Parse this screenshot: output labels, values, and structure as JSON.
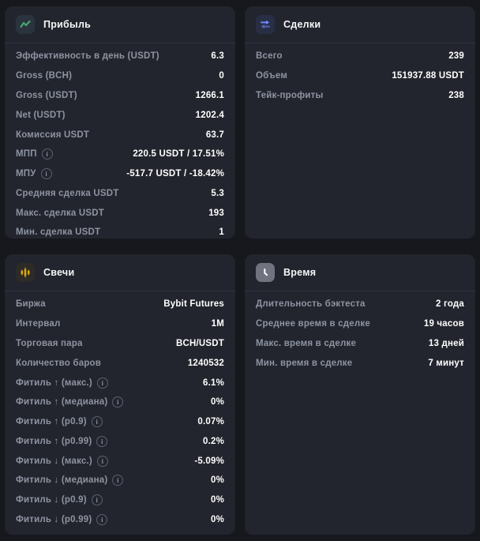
{
  "colors": {
    "page_background": "#17181e",
    "card_background": "#23252e",
    "label_text": "#8d94a1",
    "value_text": "#ffffff",
    "profit_icon_accent": "#45ab6e",
    "trades_icon_accent": "#6d87f8",
    "candles_icon_accent": "#dba70e",
    "time_icon_background": "#71737f"
  },
  "cards": [
    {
      "id": "profit",
      "title": "Прибыль",
      "icon": "chart-line-icon",
      "rows": [
        {
          "label": "Эффективность в день (USDT)",
          "value": "6.3",
          "info": false
        },
        {
          "label": "Gross (BCH)",
          "value": "0",
          "info": false
        },
        {
          "label": "Gross (USDT)",
          "value": "1266.1",
          "info": false
        },
        {
          "label": "Net (USDT)",
          "value": "1202.4",
          "info": false
        },
        {
          "label": "Комиссия USDT",
          "value": "63.7",
          "info": false
        },
        {
          "label": "МПП",
          "value": "220.5 USDT / 17.51%",
          "info": true
        },
        {
          "label": "МПУ",
          "value": "-517.7 USDT / -18.42%",
          "info": true
        },
        {
          "label": "Средняя сделка USDT",
          "value": "5.3",
          "info": false
        },
        {
          "label": "Макс. сделка USDT",
          "value": "193",
          "info": false
        },
        {
          "label": "Мин. сделка USDT",
          "value": "1",
          "info": false
        }
      ]
    },
    {
      "id": "trades",
      "title": "Сделки",
      "icon": "swap-arrows-icon",
      "rows": [
        {
          "label": "Всего",
          "value": "239",
          "info": false
        },
        {
          "label": "Объем",
          "value": "151937.88 USDT",
          "info": false
        },
        {
          "label": "Тейк-профиты",
          "value": "238",
          "info": false
        }
      ]
    },
    {
      "id": "candles",
      "title": "Свечи",
      "icon": "candlestick-icon",
      "rows": [
        {
          "label": "Биржа",
          "value": "Bybit Futures",
          "info": false
        },
        {
          "label": "Интервал",
          "value": "1M",
          "info": false
        },
        {
          "label": "Торговая пара",
          "value": "BCH/USDT",
          "info": false
        },
        {
          "label": "Количество баров",
          "value": "1240532",
          "info": false
        },
        {
          "label": "Фитиль ↑ (макс.)",
          "value": "6.1%",
          "info": true
        },
        {
          "label": "Фитиль ↑ (медиана)",
          "value": "0%",
          "info": true
        },
        {
          "label": "Фитиль ↑ (p0.9)",
          "value": "0.07%",
          "info": true
        },
        {
          "label": "Фитиль ↑ (p0.99)",
          "value": "0.2%",
          "info": true
        },
        {
          "label": "Фитиль ↓ (макс.)",
          "value": "-5.09%",
          "info": true
        },
        {
          "label": "Фитиль ↓ (медиана)",
          "value": "0%",
          "info": true
        },
        {
          "label": "Фитиль ↓ (p0.9)",
          "value": "0%",
          "info": true
        },
        {
          "label": "Фитиль ↓ (p0.99)",
          "value": "0%",
          "info": true
        }
      ]
    },
    {
      "id": "time",
      "title": "Время",
      "icon": "clock-icon",
      "rows": [
        {
          "label": "Длительность бэктеста",
          "value": "2 года",
          "info": false
        },
        {
          "label": "Среднее время в сделке",
          "value": "19 часов",
          "info": false
        },
        {
          "label": "Макс. время в сделке",
          "value": "13 дней",
          "info": false
        },
        {
          "label": "Мин. время в сделке",
          "value": "7 минут",
          "info": false
        }
      ]
    }
  ]
}
